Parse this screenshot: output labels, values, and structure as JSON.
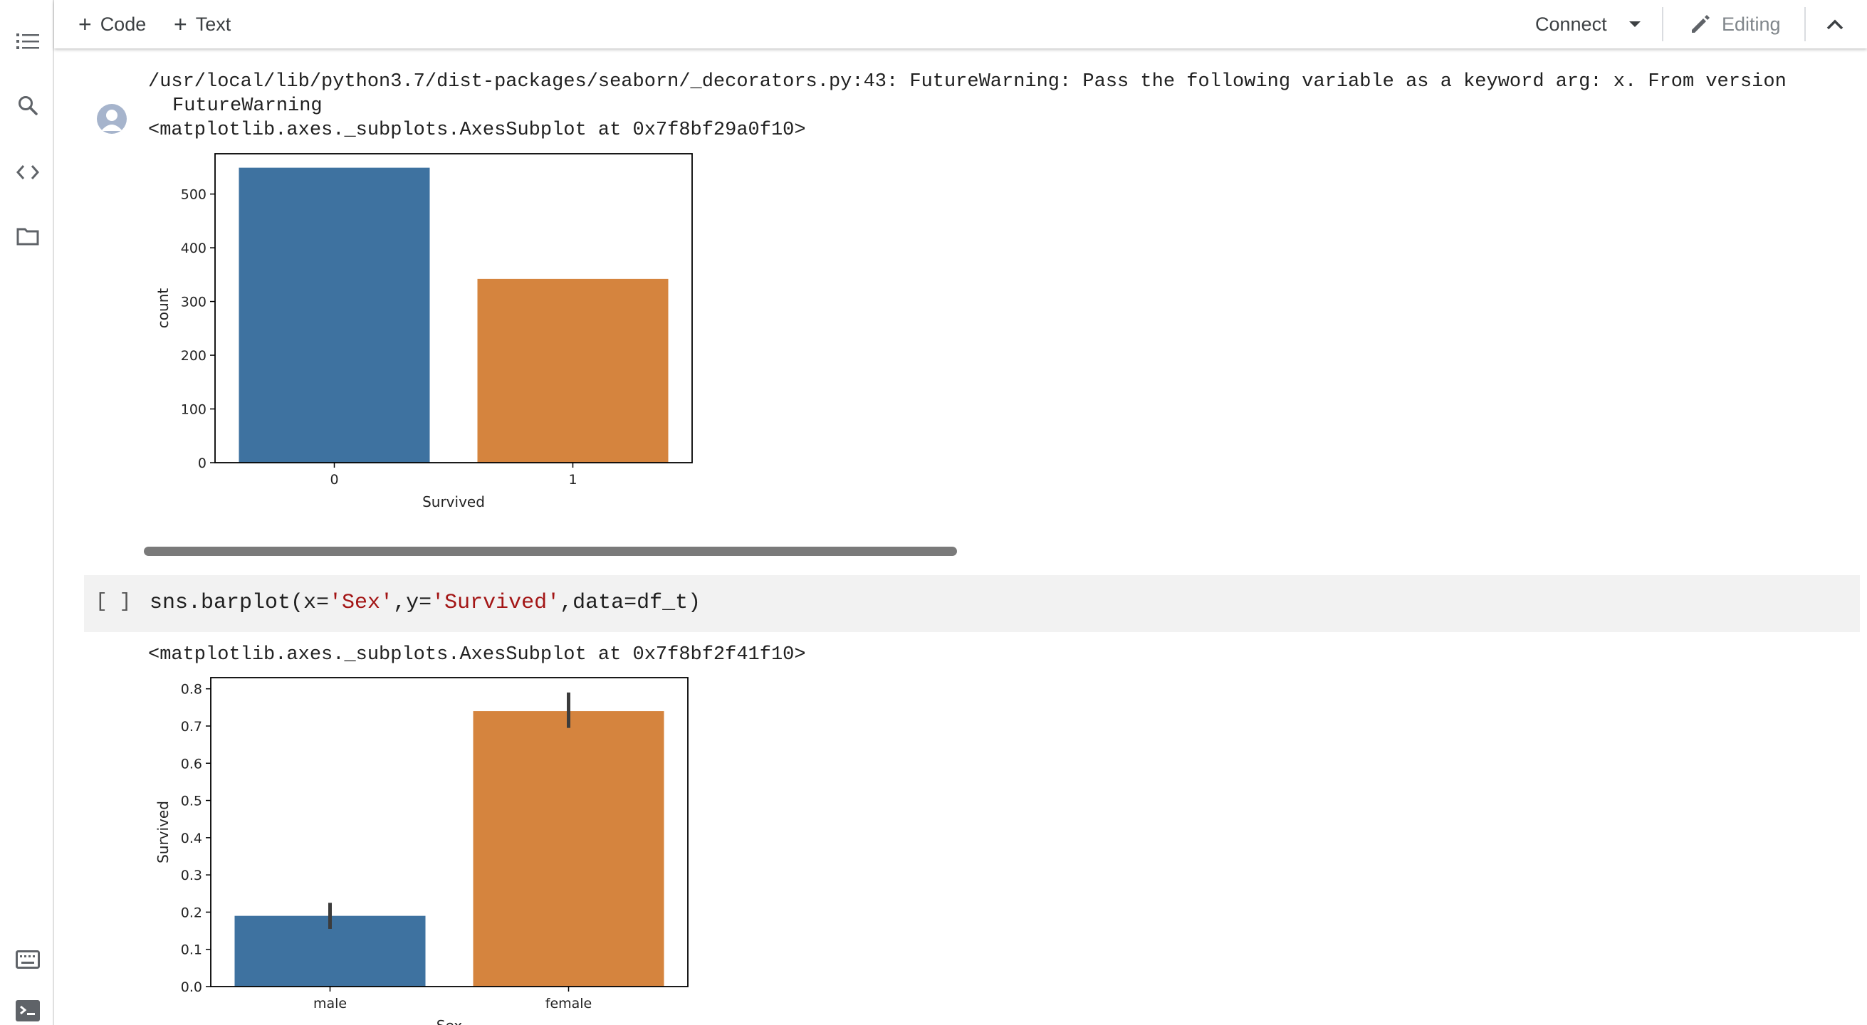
{
  "toolbar": {
    "code_label": "Code",
    "text_label": "Text",
    "connect_label": "Connect",
    "editing_label": "Editing"
  },
  "output1": {
    "warning_line1": "/usr/local/lib/python3.7/dist-packages/seaborn/_decorators.py:43: FutureWarning: Pass the following variable as a keyword arg: x. From version",
    "warning_line2": "FutureWarning",
    "repr": "<matplotlib.axes._subplots.AxesSubplot at 0x7f8bf29a0f10>"
  },
  "cell2": {
    "brackets": "[ ]",
    "code_prefix": "sns.barplot(x=",
    "code_str1": "'Sex'",
    "code_mid": ",y=",
    "code_str2": "'Survived'",
    "code_suffix": ",data=df_t)"
  },
  "output2": {
    "repr": "<matplotlib.axes._subplots.AxesSubplot at 0x7f8bf2f41f10>"
  },
  "colors": {
    "blue": "#3e72a0",
    "orange": "#d5843e",
    "errbar": "#3c3c3c"
  },
  "chart_data": [
    {
      "type": "bar",
      "categories": [
        "0",
        "1"
      ],
      "values": [
        549,
        342
      ],
      "xlabel": "Survived",
      "ylabel": "count",
      "ylim": [
        0,
        575
      ],
      "yticks": [
        0,
        100,
        200,
        300,
        400,
        500
      ],
      "ytick_labels": [
        "0",
        "100",
        "200",
        "300",
        "400",
        "500"
      ],
      "colors": [
        "#3e72a0",
        "#d5843e"
      ],
      "grid": false
    },
    {
      "type": "bar",
      "categories": [
        "male",
        "female"
      ],
      "values": [
        0.19,
        0.74
      ],
      "error_low": [
        0.155,
        0.695
      ],
      "error_high": [
        0.225,
        0.79
      ],
      "xlabel": "Sex",
      "ylabel": "Survived",
      "ylim": [
        0,
        0.83
      ],
      "yticks": [
        0,
        0.1,
        0.2,
        0.3,
        0.4,
        0.5,
        0.6,
        0.7,
        0.8
      ],
      "ytick_labels": [
        "0.0",
        "0.1",
        "0.2",
        "0.3",
        "0.4",
        "0.5",
        "0.6",
        "0.7",
        "0.8"
      ],
      "colors": [
        "#3e72a0",
        "#d5843e"
      ],
      "grid": false
    }
  ]
}
